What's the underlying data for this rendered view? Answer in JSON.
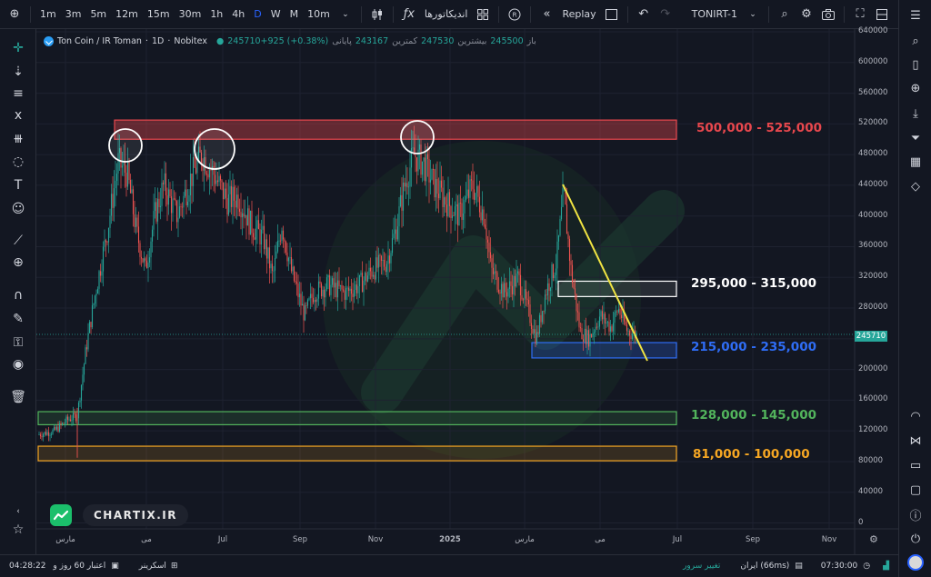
{
  "toolbar": {
    "intervals": [
      "1m",
      "3m",
      "5m",
      "12m",
      "15m",
      "30m",
      "1h",
      "4h",
      "D",
      "W",
      "M",
      "10m"
    ],
    "active_interval": "D",
    "indicators_label": "اندیکاتورها",
    "replay_label": "Replay",
    "symbol_label": "TONIRT-1"
  },
  "legend": {
    "symbol": "Ton Coin / IR Toman",
    "interval": "1D",
    "exchange": "Nobitex",
    "price_change": "245710+925 (+0.38%)",
    "close_label": "پایانی",
    "low_value": "243167",
    "low_label": "کمترین",
    "high_value": "247530",
    "high_label": "بیشترین",
    "open_value": "245500",
    "open_label": "باز"
  },
  "levels": [
    {
      "text": "500,000 - 525,000",
      "color": "#e8474d"
    },
    {
      "text": "295,000 - 315,000",
      "color": "#ffffff"
    },
    {
      "text": "215,000 - 235,000",
      "color": "#2f6df5"
    },
    {
      "text": "128,000 - 145,000",
      "color": "#52b35c"
    },
    {
      "text": "81,000 - 100,000",
      "color": "#f5a623"
    }
  ],
  "price_axis": [
    "640000",
    "600000",
    "560000",
    "520000",
    "480000",
    "440000",
    "400000",
    "360000",
    "320000",
    "280000",
    "240000",
    "200000",
    "160000",
    "120000",
    "80000",
    "40000",
    "0"
  ],
  "current_price": "245710",
  "time_axis": [
    "مارس",
    "می",
    "Jul",
    "Sep",
    "Nov",
    "2025",
    "مارس",
    "می",
    "Jul",
    "Sep",
    "Nov"
  ],
  "brand": "CHARTIX.IR",
  "bottom": {
    "time": "04:28:22",
    "credit": "اعتبار 60 روز و",
    "screener": "اسکرینر",
    "server": "تغییر سرور",
    "region": "ایران (66ms)",
    "clock": "07:30:00"
  },
  "chart_data": {
    "type": "candlestick",
    "symbol": "TONIRT",
    "ylim": [
      0,
      640000
    ],
    "current_price": 245710,
    "zones": [
      {
        "low": 500000,
        "high": 525000,
        "color": "#e8474d"
      },
      {
        "low": 295000,
        "high": 315000,
        "color": "#ffffff"
      },
      {
        "low": 215000,
        "high": 235000,
        "color": "#2f6df5"
      },
      {
        "low": 128000,
        "high": 145000,
        "color": "#52b35c"
      },
      {
        "low": 81000,
        "high": 100000,
        "color": "#f5a623"
      }
    ],
    "trendline_color": "#f0e442",
    "up_color": "#26a69a",
    "down_color": "#ef5350"
  }
}
